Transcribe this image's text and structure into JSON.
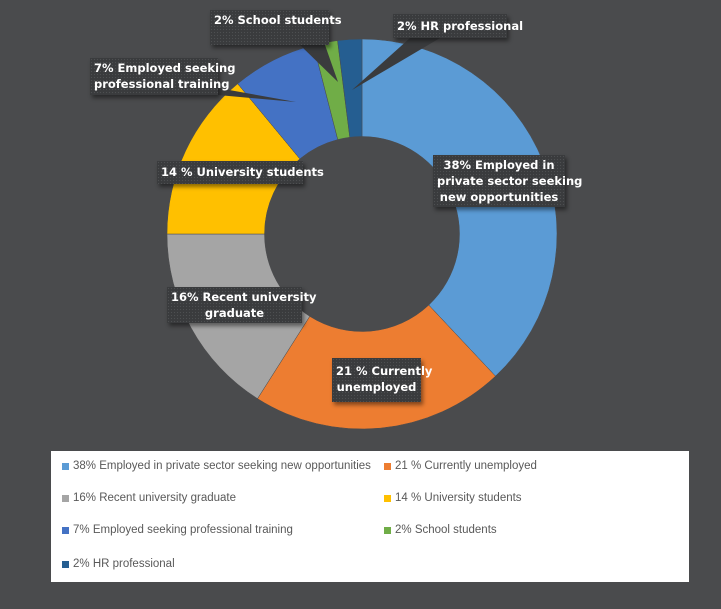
{
  "chart_data": {
    "type": "pie",
    "subtype": "doughnut",
    "title": "",
    "categories": [
      "38% Employed in private sector seeking new opportunities",
      "21 % Currently unemployed",
      "16%  Recent university graduate",
      "14 % University students",
      "7% Employed seeking professional training",
      "2% School students",
      "2% HR professional"
    ],
    "values": [
      38,
      21,
      16,
      14,
      7,
      2,
      2
    ],
    "colors": [
      "#5b9bd5",
      "#ed7d31",
      "#a5a5a5",
      "#ffc000",
      "#4472c4",
      "#70ad47",
      "#255e91"
    ],
    "start_angle": 0,
    "direction": "clockwise",
    "hole_ratio": 0.5,
    "legend_position": "bottom"
  },
  "labels": {
    "private_sector": [
      "38% Employed in",
      "private sector seeking",
      "new opportunities"
    ],
    "unemployed": [
      "21 % Currently",
      "unemployed"
    ],
    "recent_grad": [
      "16%  Recent university",
      "graduate"
    ],
    "university": [
      "14 % University students"
    ],
    "prof_training": [
      "7% Employed seeking",
      "professional training"
    ],
    "school": [
      "2% School students"
    ],
    "hr": [
      "2% HR professional"
    ]
  },
  "legend": {
    "items": [
      {
        "label": "38% Employed in private sector seeking new opportunities",
        "color": "#5b9bd5"
      },
      {
        "label": "21 % Currently unemployed",
        "color": "#ed7d31"
      },
      {
        "label": "16%  Recent university graduate",
        "color": "#a5a5a5"
      },
      {
        "label": "14 % University students",
        "color": "#ffc000"
      },
      {
        "label": "7% Employed seeking professional training",
        "color": "#4472c4"
      },
      {
        "label": "2% School students",
        "color": "#70ad47"
      },
      {
        "label": "2% HR professional",
        "color": "#255e91"
      }
    ]
  }
}
